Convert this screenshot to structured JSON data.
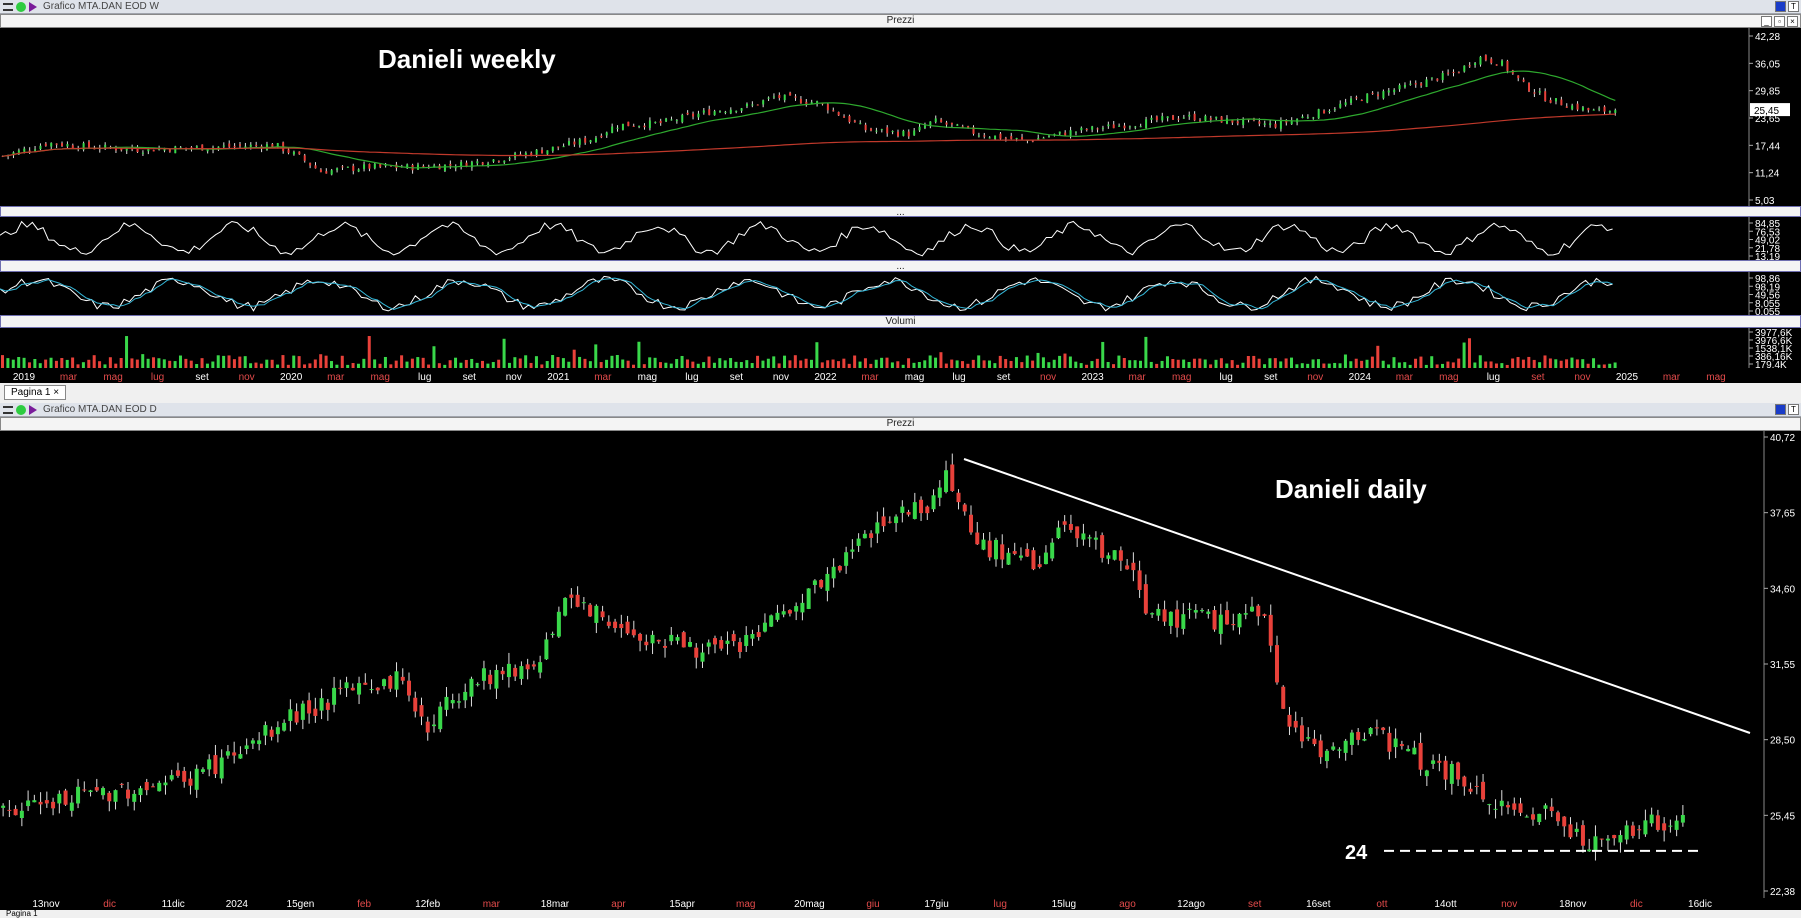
{
  "top_window": {
    "title": "Grafico MTA.DAN EOD W",
    "panel_prices_label": "Prezzi",
    "panel_volume_label": "Volumi",
    "indicator_label_1": "...",
    "indicator_label_2": "...",
    "annotation": "Danieli weekly",
    "price_ticks": [
      "42,28",
      "36,05",
      "29,85",
      "23,65",
      "17,44",
      "11,24",
      "5,03"
    ],
    "last_price": "25,45",
    "osc1_ticks": [
      "84,85",
      "76,53",
      "49,02",
      "21,78",
      "13,19"
    ],
    "osc2_ticks": [
      "98,86",
      "98,19",
      "49,56",
      "8,055",
      "0,055"
    ],
    "volume_ticks": [
      "3977,6K",
      "3976,6K",
      "1538,1K",
      "386,16K",
      "179,4K"
    ],
    "time_labels": [
      {
        "t": "2019",
        "red": false
      },
      {
        "t": "mar",
        "red": true
      },
      {
        "t": "mag",
        "red": true
      },
      {
        "t": "lug",
        "red": true
      },
      {
        "t": "set",
        "red": false
      },
      {
        "t": "nov",
        "red": true
      },
      {
        "t": "2020",
        "red": false
      },
      {
        "t": "mar",
        "red": true
      },
      {
        "t": "mag",
        "red": true
      },
      {
        "t": "lug",
        "red": false
      },
      {
        "t": "set",
        "red": false
      },
      {
        "t": "nov",
        "red": false
      },
      {
        "t": "2021",
        "red": false
      },
      {
        "t": "mar",
        "red": true
      },
      {
        "t": "mag",
        "red": false
      },
      {
        "t": "lug",
        "red": false
      },
      {
        "t": "set",
        "red": false
      },
      {
        "t": "nov",
        "red": false
      },
      {
        "t": "2022",
        "red": false
      },
      {
        "t": "mar",
        "red": true
      },
      {
        "t": "mag",
        "red": false
      },
      {
        "t": "lug",
        "red": false
      },
      {
        "t": "set",
        "red": false
      },
      {
        "t": "nov",
        "red": true
      },
      {
        "t": "2023",
        "red": false
      },
      {
        "t": "mar",
        "red": true
      },
      {
        "t": "mag",
        "red": true
      },
      {
        "t": "lug",
        "red": false
      },
      {
        "t": "set",
        "red": false
      },
      {
        "t": "nov",
        "red": true
      },
      {
        "t": "2024",
        "red": false
      },
      {
        "t": "mar",
        "red": true
      },
      {
        "t": "mag",
        "red": true
      },
      {
        "t": "lug",
        "red": false
      },
      {
        "t": "set",
        "red": true
      },
      {
        "t": "nov",
        "red": true
      },
      {
        "t": "2025",
        "red": false
      },
      {
        "t": "mar",
        "red": true
      },
      {
        "t": "mag",
        "red": true
      }
    ],
    "tab_label": "Pagina 1"
  },
  "bottom_window": {
    "title": "Grafico MTA.DAN EOD D",
    "panel_prices_label": "Prezzi",
    "annotation": "Danieli daily",
    "support_label": "24",
    "price_ticks": [
      "40,72",
      "37,65",
      "34,60",
      "31,55",
      "28,50",
      "25,45",
      "22,38"
    ],
    "time_labels": [
      {
        "t": "13nov",
        "red": false
      },
      {
        "t": "dic",
        "red": true
      },
      {
        "t": "11dic",
        "red": false
      },
      {
        "t": "2024",
        "red": false
      },
      {
        "t": "15gen",
        "red": false
      },
      {
        "t": "feb",
        "red": true
      },
      {
        "t": "12feb",
        "red": false
      },
      {
        "t": "mar",
        "red": true
      },
      {
        "t": "18mar",
        "red": false
      },
      {
        "t": "apr",
        "red": true
      },
      {
        "t": "15apr",
        "red": false
      },
      {
        "t": "mag",
        "red": true
      },
      {
        "t": "20mag",
        "red": false
      },
      {
        "t": "giu",
        "red": true
      },
      {
        "t": "17giu",
        "red": false
      },
      {
        "t": "lug",
        "red": true
      },
      {
        "t": "15lug",
        "red": false
      },
      {
        "t": "ago",
        "red": true
      },
      {
        "t": "12ago",
        "red": false
      },
      {
        "t": "set",
        "red": true
      },
      {
        "t": "16set",
        "red": false
      },
      {
        "t": "ott",
        "red": true
      },
      {
        "t": "14ott",
        "red": false
      },
      {
        "t": "nov",
        "red": true
      },
      {
        "t": "18nov",
        "red": false
      },
      {
        "t": "dic",
        "red": true
      },
      {
        "t": "16dic",
        "red": false
      }
    ],
    "tab_label": "Pagina 1"
  },
  "colors": {
    "up": "#39d84a",
    "down": "#e8413a",
    "ma_short": "#2ea82e",
    "ma_long": "#c0392b",
    "osc_line": "#ffffff",
    "osc_signal": "#35b7d8",
    "trendline": "#ffffff"
  },
  "chart_data": [
    {
      "type": "candlestick",
      "title": "Danieli weekly",
      "ylim": [
        5.03,
        42.28
      ],
      "close_path": [
        [
          "2019-01",
          15.0
        ],
        [
          "2019-03",
          18.0
        ],
        [
          "2019-05",
          17.0
        ],
        [
          "2019-07",
          16.5
        ],
        [
          "2019-09",
          16.8
        ],
        [
          "2019-11",
          17.2
        ],
        [
          "2020-01",
          17.5
        ],
        [
          "2020-02",
          15.0
        ],
        [
          "2020-03",
          11.5
        ],
        [
          "2020-05",
          12.5
        ],
        [
          "2020-07",
          12.5
        ],
        [
          "2020-09",
          13.0
        ],
        [
          "2020-11",
          14.5
        ],
        [
          "2021-01",
          16.5
        ],
        [
          "2021-03",
          19.0
        ],
        [
          "2021-04",
          22.0
        ],
        [
          "2021-06",
          22.5
        ],
        [
          "2021-08",
          25.0
        ],
        [
          "2021-10",
          26.5
        ],
        [
          "2021-11",
          28.5
        ],
        [
          "2022-01",
          27.0
        ],
        [
          "2022-03",
          21.0
        ],
        [
          "2022-05",
          20.0
        ],
        [
          "2022-06",
          23.0
        ],
        [
          "2022-08",
          20.0
        ],
        [
          "2022-10",
          18.5
        ],
        [
          "2022-12",
          20.5
        ],
        [
          "2023-03",
          22.5
        ],
        [
          "2023-05",
          24.0
        ],
        [
          "2023-07",
          23.0
        ],
        [
          "2023-09",
          22.0
        ],
        [
          "2023-11",
          25.0
        ],
        [
          "2024-01",
          28.5
        ],
        [
          "2024-03",
          31.0
        ],
        [
          "2024-05",
          34.0
        ],
        [
          "2024-06",
          37.5
        ],
        [
          "2024-07",
          36.0
        ],
        [
          "2024-08",
          31.0
        ],
        [
          "2024-09",
          28.0
        ],
        [
          "2024-10",
          26.5
        ],
        [
          "2024-11",
          25.2
        ],
        [
          "2024-12",
          25.45
        ]
      ],
      "last_value": 25.45
    },
    {
      "type": "candlestick",
      "title": "Danieli daily",
      "ylim": [
        22.38,
        40.72
      ],
      "close_path": [
        [
          "2023-11-06",
          25.5
        ],
        [
          "2023-11-20",
          26.0
        ],
        [
          "2023-12-04",
          26.5
        ],
        [
          "2023-12-18",
          26.8
        ],
        [
          "2024-01-02",
          28.0
        ],
        [
          "2024-01-15",
          29.5
        ],
        [
          "2024-01-29",
          30.5
        ],
        [
          "2024-02-09",
          31.0
        ],
        [
          "2024-02-16",
          29.0
        ],
        [
          "2024-02-27",
          31.0
        ],
        [
          "2024-03-11",
          31.5
        ],
        [
          "2024-03-18",
          34.0
        ],
        [
          "2024-04-02",
          33.0
        ],
        [
          "2024-04-12",
          32.5
        ],
        [
          "2024-04-26",
          32.0
        ],
        [
          "2024-05-10",
          33.5
        ],
        [
          "2024-05-20",
          35.0
        ],
        [
          "2024-06-03",
          37.5
        ],
        [
          "2024-06-14",
          38.0
        ],
        [
          "2024-06-18",
          39.5
        ],
        [
          "2024-06-25",
          36.5
        ],
        [
          "2024-07-08",
          35.5
        ],
        [
          "2024-07-15",
          37.0
        ],
        [
          "2024-07-31",
          35.5
        ],
        [
          "2024-08-06",
          33.5
        ],
        [
          "2024-08-20",
          33.3
        ],
        [
          "2024-09-02",
          33.5
        ],
        [
          "2024-09-06",
          30.0
        ],
        [
          "2024-09-16",
          27.8
        ],
        [
          "2024-09-27",
          29.0
        ],
        [
          "2024-10-08",
          27.8
        ],
        [
          "2024-10-18",
          27.0
        ],
        [
          "2024-11-01",
          25.3
        ],
        [
          "2024-11-08",
          25.8
        ],
        [
          "2024-11-20",
          24.3
        ],
        [
          "2024-12-03",
          25.0
        ],
        [
          "2024-12-11",
          25.45
        ]
      ],
      "support_level": 24,
      "last_value": 25.45
    }
  ]
}
